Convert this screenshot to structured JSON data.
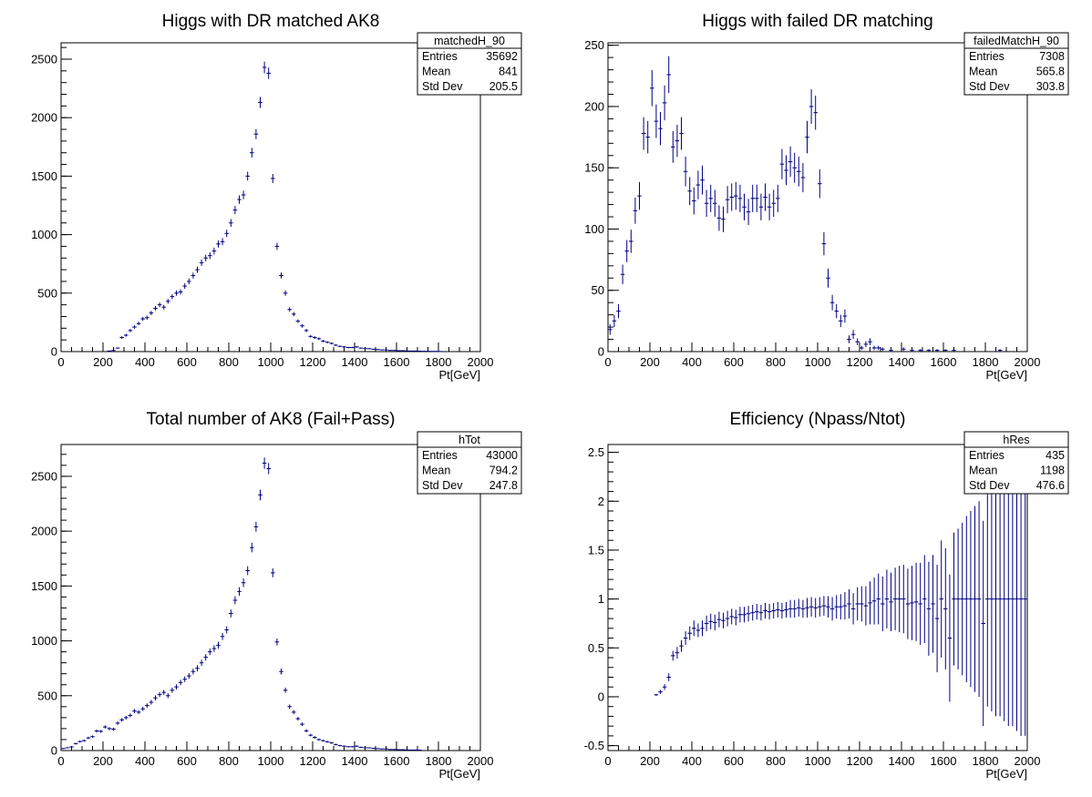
{
  "color_marker": "#000080",
  "chart_data": [
    {
      "type": "histogram",
      "title": "Higgs with DR matched AK8",
      "xlabel": "Pt[GeV]",
      "xlim": [
        0,
        2000
      ],
      "ylim": [
        0,
        2640
      ],
      "xticks": [
        0,
        200,
        400,
        600,
        800,
        1000,
        1200,
        1400,
        1600,
        1800,
        2000
      ],
      "yticks": [
        0,
        500,
        1000,
        1500,
        2000,
        2500
      ],
      "stats": {
        "name": "matchedH_90",
        "entries": "35692",
        "mean": "841",
        "stddev": "205.5"
      },
      "x": [
        230,
        250,
        270,
        290,
        310,
        330,
        350,
        370,
        390,
        410,
        430,
        450,
        470,
        490,
        510,
        530,
        550,
        570,
        590,
        610,
        630,
        650,
        670,
        690,
        710,
        730,
        750,
        770,
        790,
        810,
        830,
        850,
        870,
        890,
        910,
        930,
        950,
        970,
        990,
        1010,
        1030,
        1050,
        1070,
        1090,
        1110,
        1130,
        1150,
        1170,
        1190,
        1210,
        1230,
        1250,
        1270,
        1290,
        1310,
        1330,
        1350,
        1370,
        1390,
        1410,
        1430,
        1450,
        1470,
        1490,
        1510,
        1530,
        1550,
        1570,
        1590,
        1610,
        1630,
        1650,
        1670,
        1690,
        1710,
        1730,
        1750,
        1770,
        1790,
        1810
      ],
      "values": [
        5,
        10,
        30,
        120,
        140,
        180,
        210,
        240,
        280,
        290,
        330,
        370,
        400,
        380,
        430,
        470,
        500,
        510,
        560,
        600,
        650,
        700,
        760,
        800,
        820,
        860,
        920,
        940,
        1010,
        1100,
        1210,
        1300,
        1340,
        1500,
        1700,
        1860,
        2130,
        2430,
        2380,
        1480,
        900,
        650,
        500,
        360,
        320,
        260,
        220,
        180,
        130,
        120,
        110,
        90,
        80,
        70,
        55,
        45,
        40,
        35,
        35,
        40,
        30,
        25,
        25,
        20,
        18,
        15,
        15,
        10,
        10,
        8,
        8,
        6,
        5,
        5,
        4,
        3,
        3,
        2,
        2,
        1
      ]
    },
    {
      "type": "histogram",
      "title": "Higgs with failed DR matching",
      "xlabel": "Pt[GeV]",
      "xlim": [
        0,
        2000
      ],
      "ylim": [
        0,
        252
      ],
      "xticks": [
        0,
        200,
        400,
        600,
        800,
        1000,
        1200,
        1400,
        1600,
        1800,
        2000
      ],
      "yticks": [
        0,
        50,
        100,
        150,
        200,
        250
      ],
      "stats": {
        "name": "failedMatchH_90",
        "entries": "7308",
        "mean": "565.8",
        "stddev": "303.8"
      },
      "x": [
        10,
        30,
        50,
        70,
        90,
        110,
        130,
        150,
        170,
        190,
        210,
        230,
        250,
        270,
        290,
        310,
        330,
        350,
        370,
        390,
        410,
        430,
        450,
        470,
        490,
        510,
        530,
        550,
        570,
        590,
        610,
        630,
        650,
        670,
        690,
        710,
        730,
        750,
        770,
        790,
        810,
        830,
        850,
        870,
        890,
        910,
        930,
        950,
        970,
        990,
        1010,
        1030,
        1050,
        1070,
        1090,
        1110,
        1130,
        1150,
        1170,
        1190,
        1210,
        1230,
        1250,
        1270,
        1290,
        1310,
        1350,
        1410,
        1450,
        1490,
        1530,
        1570,
        1610,
        1650,
        1870
      ],
      "values": [
        18,
        25,
        33,
        63,
        82,
        90,
        115,
        127,
        178,
        175,
        215,
        188,
        182,
        203,
        226,
        167,
        172,
        178,
        147,
        131,
        123,
        136,
        140,
        121,
        125,
        121,
        109,
        108,
        124,
        126,
        127,
        125,
        118,
        114,
        125,
        125,
        118,
        126,
        118,
        121,
        125,
        153,
        148,
        155,
        150,
        147,
        142,
        175,
        200,
        195,
        137,
        88,
        60,
        40,
        33,
        25,
        29,
        10,
        14,
        8,
        3,
        6,
        8,
        3,
        3,
        2,
        1,
        2,
        1,
        1,
        1,
        1,
        1,
        1,
        1
      ]
    },
    {
      "type": "histogram",
      "title": "Total number of AK8 (Fail+Pass)",
      "xlabel": "Pt[GeV]",
      "xlim": [
        0,
        2000
      ],
      "ylim": [
        0,
        2790
      ],
      "xticks": [
        0,
        200,
        400,
        600,
        800,
        1000,
        1200,
        1400,
        1600,
        1800,
        2000
      ],
      "yticks": [
        0,
        500,
        1000,
        1500,
        2000,
        2500
      ],
      "stats": {
        "name": "hTot",
        "entries": "43000",
        "mean": "794.2",
        "stddev": "247.8"
      },
      "x": [
        10,
        30,
        50,
        70,
        90,
        110,
        130,
        150,
        170,
        190,
        210,
        230,
        250,
        270,
        290,
        310,
        330,
        350,
        370,
        390,
        410,
        430,
        450,
        470,
        490,
        510,
        530,
        550,
        570,
        590,
        610,
        630,
        650,
        670,
        690,
        710,
        730,
        750,
        770,
        790,
        810,
        830,
        850,
        870,
        890,
        910,
        930,
        950,
        970,
        990,
        1010,
        1030,
        1050,
        1070,
        1090,
        1110,
        1130,
        1150,
        1170,
        1190,
        1210,
        1230,
        1250,
        1270,
        1290,
        1310,
        1330,
        1350,
        1370,
        1390,
        1410,
        1430,
        1450,
        1470,
        1490,
        1510,
        1530,
        1550,
        1570,
        1590,
        1610,
        1630,
        1650,
        1670,
        1690,
        1710
      ],
      "values": [
        18,
        25,
        33,
        63,
        82,
        90,
        115,
        127,
        178,
        175,
        215,
        200,
        195,
        250,
        280,
        300,
        320,
        360,
        350,
        380,
        410,
        440,
        480,
        510,
        530,
        500,
        550,
        580,
        620,
        650,
        680,
        720,
        750,
        800,
        850,
        900,
        930,
        960,
        1040,
        1100,
        1250,
        1370,
        1450,
        1530,
        1640,
        1850,
        2040,
        2330,
        2620,
        2570,
        1620,
        990,
        720,
        550,
        400,
        350,
        290,
        240,
        180,
        140,
        120,
        100,
        90,
        80,
        70,
        55,
        45,
        40,
        35,
        35,
        40,
        30,
        25,
        25,
        20,
        18,
        15,
        15,
        10,
        10,
        8,
        8,
        6,
        5,
        5,
        4
      ]
    },
    {
      "type": "scatter",
      "title": "Efficiency (Npass/Ntot)",
      "xlabel": "Pt[GeV]",
      "xlim": [
        0,
        2000
      ],
      "ylim": [
        -0.55,
        2.58
      ],
      "xticks": [
        0,
        200,
        400,
        600,
        800,
        1000,
        1200,
        1400,
        1600,
        1800,
        2000
      ],
      "yticks": [
        -0.5,
        0,
        0.5,
        1,
        1.5,
        2,
        2.5
      ],
      "stats": {
        "name": "hRes",
        "entries": "435",
        "mean": "1198",
        "stddev": "476.6"
      },
      "x": [
        230,
        250,
        270,
        290,
        310,
        330,
        350,
        370,
        390,
        410,
        430,
        450,
        470,
        490,
        510,
        530,
        550,
        570,
        590,
        610,
        630,
        650,
        670,
        690,
        710,
        730,
        750,
        770,
        790,
        810,
        830,
        850,
        870,
        890,
        910,
        930,
        950,
        970,
        990,
        1010,
        1030,
        1050,
        1070,
        1090,
        1110,
        1130,
        1150,
        1170,
        1190,
        1210,
        1230,
        1250,
        1270,
        1290,
        1310,
        1330,
        1350,
        1370,
        1390,
        1410,
        1430,
        1450,
        1470,
        1490,
        1510,
        1530,
        1550,
        1570,
        1590,
        1610,
        1630,
        1650,
        1670,
        1690,
        1710,
        1730,
        1750,
        1770,
        1790,
        1810,
        1830,
        1850,
        1870,
        1890,
        1910,
        1930,
        1950,
        1970,
        1990
      ],
      "values": [
        0.02,
        0.05,
        0.1,
        0.2,
        0.42,
        0.45,
        0.52,
        0.6,
        0.65,
        0.7,
        0.68,
        0.7,
        0.75,
        0.77,
        0.76,
        0.79,
        0.78,
        0.8,
        0.82,
        0.81,
        0.84,
        0.84,
        0.85,
        0.86,
        0.87,
        0.86,
        0.88,
        0.87,
        0.88,
        0.89,
        0.88,
        0.89,
        0.9,
        0.9,
        0.91,
        0.9,
        0.91,
        0.92,
        0.91,
        0.92,
        0.93,
        0.92,
        0.9,
        0.92,
        0.92,
        0.93,
        0.95,
        0.9,
        0.95,
        0.95,
        0.93,
        0.96,
        0.98,
        1.0,
        0.95,
        1.0,
        0.97,
        1.0,
        1.0,
        1.0,
        0.95,
        0.96,
        0.97,
        0.95,
        1.0,
        0.9,
        0.95,
        0.8,
        1.0,
        0.9,
        0.6,
        1.0,
        1.0,
        1.0,
        1.0,
        1.0,
        1.0,
        1.0,
        0.75,
        1.0,
        1.0,
        1.0,
        1.0,
        1.0,
        1.0,
        1.0,
        1.0,
        1.0,
        1.0
      ],
      "errors": [
        0.01,
        0.02,
        0.03,
        0.04,
        0.05,
        0.06,
        0.06,
        0.07,
        0.07,
        0.08,
        0.07,
        0.08,
        0.08,
        0.08,
        0.08,
        0.08,
        0.08,
        0.08,
        0.08,
        0.08,
        0.08,
        0.08,
        0.08,
        0.08,
        0.08,
        0.08,
        0.08,
        0.08,
        0.08,
        0.08,
        0.08,
        0.08,
        0.09,
        0.09,
        0.09,
        0.09,
        0.1,
        0.1,
        0.1,
        0.1,
        0.1,
        0.11,
        0.12,
        0.12,
        0.13,
        0.14,
        0.15,
        0.16,
        0.17,
        0.18,
        0.2,
        0.22,
        0.24,
        0.26,
        0.28,
        0.3,
        0.3,
        0.32,
        0.34,
        0.35,
        0.36,
        0.38,
        0.4,
        0.42,
        0.45,
        0.48,
        0.5,
        0.55,
        0.6,
        0.62,
        0.65,
        0.68,
        0.72,
        0.78,
        0.85,
        0.9,
        0.95,
        1.0,
        1.05,
        1.1,
        1.15,
        1.2,
        1.2,
        1.25,
        1.3,
        1.3,
        1.35,
        1.4,
        1.4
      ]
    }
  ]
}
